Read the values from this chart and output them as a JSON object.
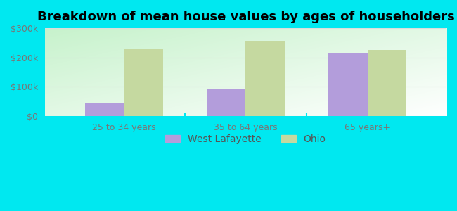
{
  "title": "Breakdown of mean house values by ages of householders",
  "categories": [
    "25 to 34 years",
    "35 to 64 years",
    "65 years+"
  ],
  "west_lafayette": [
    45000,
    90000,
    215000
  ],
  "ohio": [
    230000,
    258000,
    225000
  ],
  "bar_color_wl": "#b39ddb",
  "bar_color_ohio": "#c5d9a0",
  "background_color": "#00e8f0",
  "ylim": [
    0,
    300000
  ],
  "yticks": [
    0,
    100000,
    200000,
    300000
  ],
  "ytick_labels": [
    "$0",
    "$100k",
    "$200k",
    "$300k"
  ],
  "legend_labels": [
    "West Lafayette",
    "Ohio"
  ],
  "title_fontsize": 13,
  "tick_fontsize": 9,
  "legend_fontsize": 10,
  "bar_width": 0.32,
  "grid_color": "#dddddd"
}
